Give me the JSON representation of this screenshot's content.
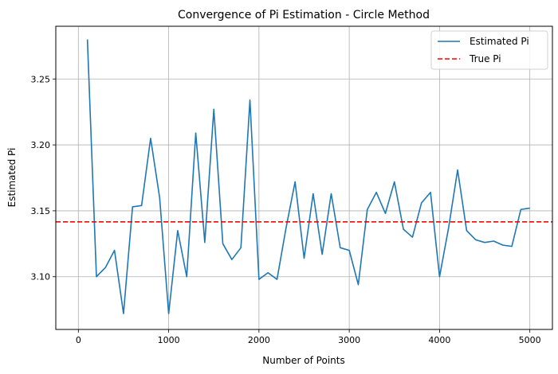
{
  "chart_data": {
    "type": "line",
    "title": "Convergence of Pi Estimation - Circle Method",
    "xlabel": "Number of Points",
    "ylabel": "Estimated Pi",
    "xlim": [
      -250,
      5250
    ],
    "ylim": [
      3.06,
      3.29
    ],
    "xticks": [
      0,
      1000,
      2000,
      3000,
      4000,
      5000
    ],
    "xtick_labels": [
      "0",
      "1000",
      "2000",
      "3000",
      "4000",
      "5000"
    ],
    "yticks": [
      3.1,
      3.15,
      3.2,
      3.25
    ],
    "ytick_labels": [
      "3.10",
      "3.15",
      "3.20",
      "3.25"
    ],
    "grid": true,
    "legend_position": "top-right",
    "series": [
      {
        "name": "Estimated Pi",
        "style": "solid",
        "color": "#1f77b4",
        "x": [
          100,
          200,
          300,
          400,
          500,
          600,
          700,
          800,
          900,
          1000,
          1100,
          1200,
          1300,
          1400,
          1500,
          1600,
          1700,
          1800,
          1900,
          2000,
          2100,
          2200,
          2300,
          2400,
          2500,
          2600,
          2700,
          2800,
          2900,
          3000,
          3100,
          3200,
          3300,
          3400,
          3500,
          3600,
          3700,
          3800,
          3900,
          4000,
          4100,
          4200,
          4300,
          4400,
          4500,
          4600,
          4700,
          4800,
          4900,
          5000
        ],
        "y": [
          3.28,
          3.1,
          3.107,
          3.12,
          3.072,
          3.153,
          3.154,
          3.205,
          3.16,
          3.072,
          3.135,
          3.1,
          3.209,
          3.126,
          3.227,
          3.125,
          3.113,
          3.122,
          3.234,
          3.098,
          3.103,
          3.098,
          3.137,
          3.172,
          3.114,
          3.163,
          3.117,
          3.163,
          3.122,
          3.12,
          3.094,
          3.151,
          3.164,
          3.148,
          3.172,
          3.136,
          3.13,
          3.156,
          3.164,
          3.1,
          3.137,
          3.181,
          3.135,
          3.128,
          3.126,
          3.127,
          3.124,
          3.123,
          3.151,
          3.152
        ]
      },
      {
        "name": "True Pi",
        "style": "dashed",
        "color": "#ff0000",
        "x": [
          -250,
          5250
        ],
        "y": [
          3.14159,
          3.14159
        ]
      }
    ]
  }
}
